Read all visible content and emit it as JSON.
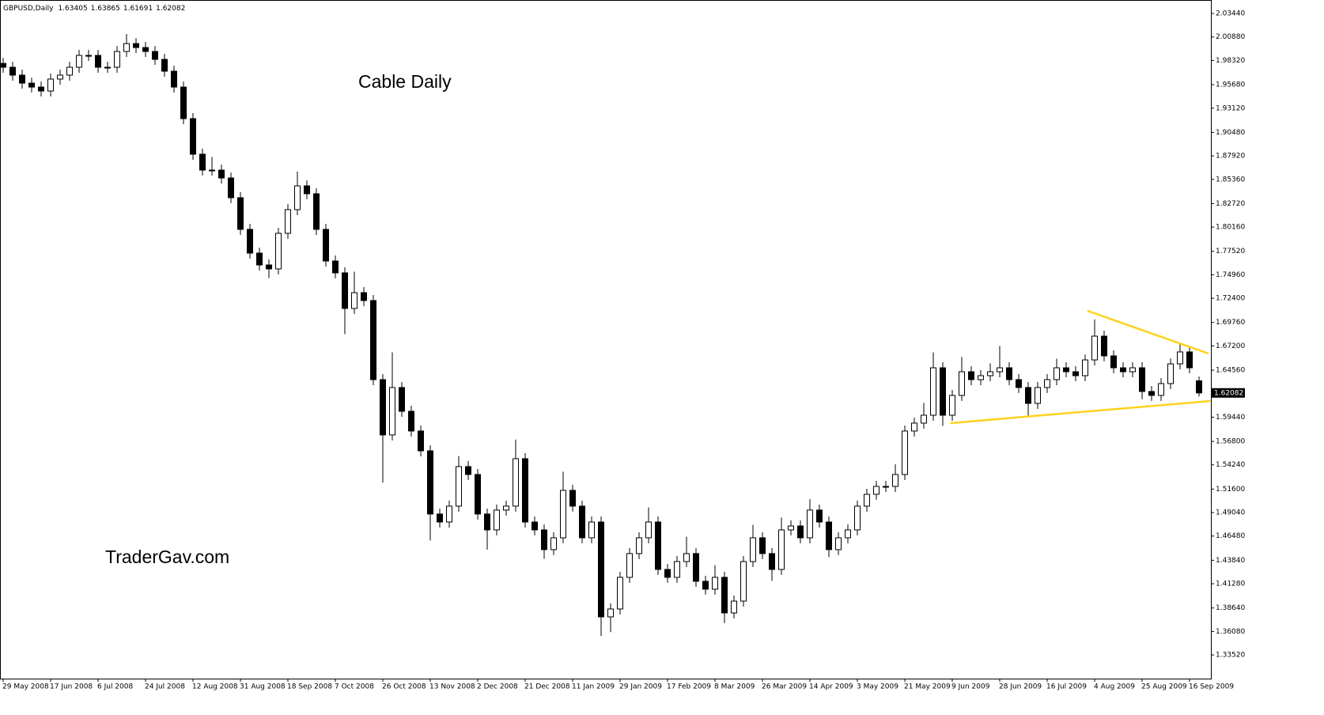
{
  "chart_data": {
    "type": "candlestick",
    "title": "GBPUSD,Daily",
    "annotations": [
      "Cable Daily",
      "TraderGav.com"
    ],
    "categories": [
      "29 May 2008",
      null,
      null,
      null,
      null,
      "17 Jun 2008",
      null,
      null,
      null,
      null,
      "6 Jul 2008",
      null,
      null,
      null,
      null,
      "24 Jul 2008",
      null,
      null,
      null,
      null,
      "12 Aug 2008",
      null,
      null,
      null,
      null,
      "31 Aug 2008",
      null,
      null,
      null,
      null,
      "18 Sep 2008",
      null,
      null,
      null,
      null,
      "7 Oct 2008",
      null,
      null,
      null,
      null,
      "26 Oct 2008",
      null,
      null,
      null,
      null,
      "13 Nov 2008",
      null,
      null,
      null,
      null,
      "2 Dec 2008",
      null,
      null,
      null,
      null,
      "21 Dec 2008",
      null,
      null,
      null,
      null,
      "11 Jan 2009",
      null,
      null,
      null,
      null,
      "29 Jan 2009",
      null,
      null,
      null,
      null,
      "17 Feb 2009",
      null,
      null,
      null,
      null,
      "8 Mar 2009",
      null,
      null,
      null,
      null,
      "26 Mar 2009",
      null,
      null,
      null,
      null,
      "14 Apr 2009",
      null,
      null,
      null,
      null,
      "3 May 2009",
      null,
      null,
      null,
      null,
      "21 May 2009",
      null,
      null,
      null,
      null,
      "9 Jun 2009",
      null,
      null,
      null,
      null,
      "28 Jun 2009",
      null,
      null,
      null,
      null,
      "16 Jul 2009",
      null,
      null,
      null,
      null,
      "4 Aug 2009",
      null,
      null,
      null,
      null,
      "25 Aug 2009",
      null,
      null,
      null,
      null,
      "16 Sep 2009",
      null
    ],
    "open": [
      1.98,
      1.9758,
      1.9672,
      1.9585,
      1.9542,
      1.9499,
      1.9629,
      1.9672,
      1.9758,
      1.9887,
      1.9887,
      1.9758,
      1.9758,
      1.993,
      2.0016,
      1.9973,
      1.993,
      1.9844,
      1.9715,
      1.9542,
      1.9198,
      1.881,
      1.8637,
      1.8637,
      1.8551,
      1.8336,
      1.7991,
      1.7732,
      1.7603,
      1.756,
      1.7948,
      1.8206,
      1.8465,
      1.8379,
      1.7991,
      1.7646,
      1.7517,
      1.7129,
      1.7301,
      1.7215,
      1.6353,
      1.575,
      1.6267,
      1.6008,
      1.5793,
      1.5577,
      1.4888,
      1.4801,
      1.4974,
      1.5405,
      1.5319,
      1.4888,
      1.4715,
      1.4931,
      1.4974,
      1.5491,
      1.4801,
      1.4715,
      1.45,
      1.4629,
      1.5146,
      1.4974,
      1.4629,
      1.4801,
      1.3767,
      1.3853,
      1.4198,
      1.4457,
      1.4629,
      1.4801,
      1.4284,
      1.4198,
      1.437,
      1.4457,
      1.4155,
      1.4069,
      1.4198,
      1.381,
      1.3939,
      1.437,
      1.4629,
      1.4457,
      1.4284,
      1.4715,
      1.4758,
      1.4629,
      1.4931,
      1.4801,
      1.45,
      1.4629,
      1.4715,
      1.4974,
      1.5103,
      1.5189,
      1.5189,
      1.5319,
      1.5793,
      1.5879,
      1.5965,
      1.6482,
      1.5965,
      1.6181,
      1.6439,
      1.6353,
      1.6396,
      1.6439,
      1.6482,
      1.6353,
      1.6267,
      1.6094,
      1.6267,
      1.6353,
      1.6482,
      1.6439,
      1.6396,
      1.6568,
      1.6827,
      1.6612,
      1.6482,
      1.6439,
      1.6482,
      1.6224,
      1.6181,
      1.631,
      1.6525,
      1.6655,
      1.63405
    ],
    "high": [
      1.986,
      1.9818,
      1.9732,
      1.9645,
      1.9602,
      1.9689,
      1.9732,
      1.9818,
      1.9947,
      1.9947,
      1.9947,
      1.9818,
      1.999,
      2.012,
      2.0076,
      2.0033,
      1.999,
      1.9904,
      1.9775,
      1.9602,
      1.9258,
      1.887,
      1.878,
      1.8697,
      1.8611,
      1.8396,
      1.8051,
      1.7792,
      1.7663,
      1.8008,
      1.8266,
      1.862,
      1.8525,
      1.8439,
      1.8051,
      1.7706,
      1.7577,
      1.753,
      1.7361,
      1.7275,
      1.6413,
      1.665,
      1.6327,
      1.6068,
      1.5853,
      1.5637,
      1.4948,
      1.5034,
      1.552,
      1.5465,
      1.5379,
      1.4948,
      1.4991,
      1.5034,
      1.57,
      1.5551,
      1.4861,
      1.4775,
      1.4689,
      1.535,
      1.5206,
      1.5034,
      1.4861,
      1.4861,
      1.3913,
      1.4258,
      1.4517,
      1.4689,
      1.496,
      1.4861,
      1.4344,
      1.443,
      1.464,
      1.4517,
      1.4215,
      1.433,
      1.4258,
      1.3999,
      1.443,
      1.477,
      1.4689,
      1.4517,
      1.485,
      1.4818,
      1.4818,
      1.505,
      1.4991,
      1.4861,
      1.4689,
      1.4775,
      1.5034,
      1.5163,
      1.5249,
      1.5249,
      1.543,
      1.5853,
      1.5939,
      1.61,
      1.665,
      1.6542,
      1.6241,
      1.66,
      1.6499,
      1.6456,
      1.653,
      1.672,
      1.6542,
      1.6413,
      1.6327,
      1.6327,
      1.6413,
      1.658,
      1.6542,
      1.6499,
      1.6628,
      1.701,
      1.6887,
      1.6672,
      1.6542,
      1.6542,
      1.6542,
      1.6284,
      1.637,
      1.6585,
      1.675,
      1.6715,
      1.63865
    ],
    "low": [
      1.9698,
      1.9612,
      1.9525,
      1.9482,
      1.9439,
      1.9439,
      1.9569,
      1.9612,
      1.9698,
      1.9827,
      1.9698,
      1.9698,
      1.9698,
      1.987,
      1.9913,
      1.987,
      1.9784,
      1.9655,
      1.9482,
      1.9138,
      1.875,
      1.8577,
      1.8577,
      1.8491,
      1.8276,
      1.7931,
      1.7672,
      1.7543,
      1.746,
      1.75,
      1.7888,
      1.8146,
      1.8319,
      1.7931,
      1.7586,
      1.7457,
      1.685,
      1.7069,
      1.7155,
      1.6293,
      1.523,
      1.569,
      1.5948,
      1.5733,
      1.5517,
      1.46,
      1.4741,
      1.4741,
      1.4914,
      1.5259,
      1.4828,
      1.45,
      1.4655,
      1.4871,
      1.4914,
      1.4741,
      1.4655,
      1.44,
      1.444,
      1.4569,
      1.4914,
      1.4569,
      1.4569,
      1.356,
      1.36,
      1.3793,
      1.4138,
      1.4397,
      1.4569,
      1.4224,
      1.4138,
      1.4138,
      1.431,
      1.4095,
      1.4009,
      1.4009,
      1.37,
      1.375,
      1.3879,
      1.431,
      1.4397,
      1.416,
      1.4224,
      1.4655,
      1.4569,
      1.4569,
      1.4741,
      1.442,
      1.444,
      1.4569,
      1.4655,
      1.4914,
      1.5043,
      1.5129,
      1.5129,
      1.5259,
      1.5733,
      1.5819,
      1.5905,
      1.585,
      1.5905,
      1.6121,
      1.6293,
      1.6293,
      1.6336,
      1.6379,
      1.6293,
      1.6207,
      1.596,
      1.6034,
      1.6207,
      1.6293,
      1.6379,
      1.6336,
      1.6336,
      1.6508,
      1.6552,
      1.6422,
      1.6379,
      1.6379,
      1.614,
      1.6121,
      1.6121,
      1.625,
      1.6465,
      1.6422,
      1.61691
    ],
    "close": [
      1.9758,
      1.9672,
      1.9585,
      1.9542,
      1.9499,
      1.9629,
      1.9672,
      1.9758,
      1.9887,
      1.9887,
      1.9758,
      1.9758,
      1.993,
      2.0016,
      1.9973,
      1.993,
      1.9844,
      1.9715,
      1.9542,
      1.9198,
      1.881,
      1.8637,
      1.8637,
      1.8551,
      1.8336,
      1.7991,
      1.7732,
      1.7603,
      1.756,
      1.7948,
      1.8206,
      1.8465,
      1.8379,
      1.7991,
      1.7646,
      1.7517,
      1.7129,
      1.7301,
      1.7215,
      1.6353,
      1.575,
      1.6267,
      1.6008,
      1.5793,
      1.5577,
      1.4888,
      1.4801,
      1.4974,
      1.5405,
      1.5319,
      1.4888,
      1.4715,
      1.4931,
      1.4974,
      1.5491,
      1.4801,
      1.4715,
      1.45,
      1.4629,
      1.5146,
      1.4974,
      1.4629,
      1.4801,
      1.3767,
      1.3853,
      1.4198,
      1.4457,
      1.4629,
      1.4801,
      1.4284,
      1.4198,
      1.437,
      1.4457,
      1.4155,
      1.4069,
      1.4198,
      1.381,
      1.3939,
      1.437,
      1.4629,
      1.4457,
      1.4284,
      1.4715,
      1.4758,
      1.4629,
      1.4931,
      1.4801,
      1.45,
      1.4629,
      1.4715,
      1.4974,
      1.5103,
      1.5189,
      1.5189,
      1.5319,
      1.5793,
      1.5879,
      1.5965,
      1.6482,
      1.5965,
      1.6181,
      1.6439,
      1.6353,
      1.6396,
      1.6439,
      1.6482,
      1.6353,
      1.6267,
      1.6094,
      1.6267,
      1.6353,
      1.6482,
      1.6439,
      1.6396,
      1.6568,
      1.6827,
      1.6612,
      1.6482,
      1.6439,
      1.6482,
      1.6224,
      1.6181,
      1.631,
      1.6525,
      1.6655,
      1.6482,
      1.62082
    ],
    "up_color": "#ffffff",
    "down_color": "#000000",
    "ylim": [
      1.3094,
      2.0491
    ],
    "yticks": [
      {
        "value": 2.0344,
        "label": "2.03440"
      },
      {
        "value": 2.0088,
        "label": "2.00880"
      },
      {
        "value": 1.9832,
        "label": "1.98320"
      },
      {
        "value": 1.9568,
        "label": "1.95680"
      },
      {
        "value": 1.9312,
        "label": "1.93120"
      },
      {
        "value": 1.9048,
        "label": "1.90480"
      },
      {
        "value": 1.8792,
        "label": "1.87920"
      },
      {
        "value": 1.8536,
        "label": "1.85360"
      },
      {
        "value": 1.8272,
        "label": "1.82720"
      },
      {
        "value": 1.8016,
        "label": "1.80160"
      },
      {
        "value": 1.7752,
        "label": "1.77520"
      },
      {
        "value": 1.7496,
        "label": "1.74960"
      },
      {
        "value": 1.724,
        "label": "1.72400"
      },
      {
        "value": 1.6976,
        "label": "1.69760"
      },
      {
        "value": 1.672,
        "label": "1.67200"
      },
      {
        "value": 1.6456,
        "label": "1.64560"
      },
      {
        "value": 1.5944,
        "label": "1.59440"
      },
      {
        "value": 1.568,
        "label": "1.56800"
      },
      {
        "value": 1.5424,
        "label": "1.54240"
      },
      {
        "value": 1.516,
        "label": "1.51600"
      },
      {
        "value": 1.4904,
        "label": "1.49040"
      },
      {
        "value": 1.4648,
        "label": "1.46480"
      },
      {
        "value": 1.4384,
        "label": "1.43840"
      },
      {
        "value": 1.4128,
        "label": "1.41280"
      },
      {
        "value": 1.3864,
        "label": "1.38640"
      },
      {
        "value": 1.3608,
        "label": "1.36080"
      },
      {
        "value": 1.3352,
        "label": "1.33520"
      }
    ],
    "trendlines": [
      {
        "color": "#ffd21f",
        "x": [
          114.25,
          127
        ],
        "y": [
          1.7103,
          1.6637
        ]
      },
      {
        "color": "#ffd21f",
        "x": [
          99.8,
          127.2
        ],
        "y": [
          1.5879,
          1.612
        ]
      }
    ]
  }
}
